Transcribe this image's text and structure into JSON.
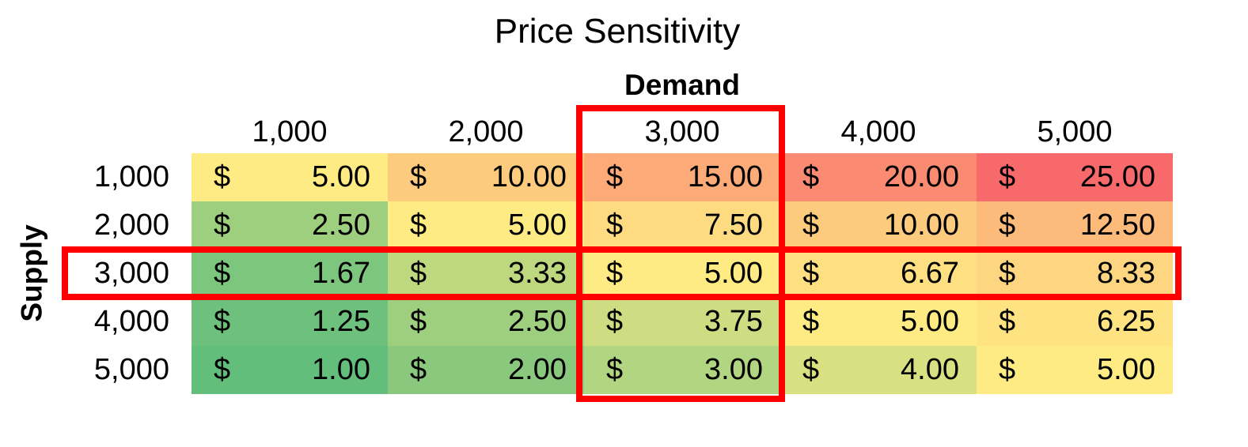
{
  "chart_data": {
    "type": "heatmap",
    "title": "Price Sensitivity",
    "xlabel": "Demand",
    "ylabel": "Supply",
    "currency_symbol": "$",
    "x_categories": [
      "1,000",
      "2,000",
      "3,000",
      "4,000",
      "5,000"
    ],
    "y_categories": [
      "1,000",
      "2,000",
      "3,000",
      "4,000",
      "5,000"
    ],
    "values": [
      [
        "5.00",
        "10.00",
        "15.00",
        "20.00",
        "25.00"
      ],
      [
        "2.50",
        "5.00",
        "7.50",
        "10.00",
        "12.50"
      ],
      [
        "1.67",
        "3.33",
        "5.00",
        "6.67",
        "8.33"
      ],
      [
        "1.25",
        "2.50",
        "3.75",
        "5.00",
        "6.25"
      ],
      [
        "1.00",
        "2.00",
        "3.00",
        "4.00",
        "5.00"
      ]
    ],
    "color_scale": {
      "low": "#63be7b",
      "mid": "#ffeb84",
      "high": "#f8696b"
    },
    "highlight": {
      "column": "3,000",
      "row": "3,000",
      "color": "#ff0000"
    }
  }
}
